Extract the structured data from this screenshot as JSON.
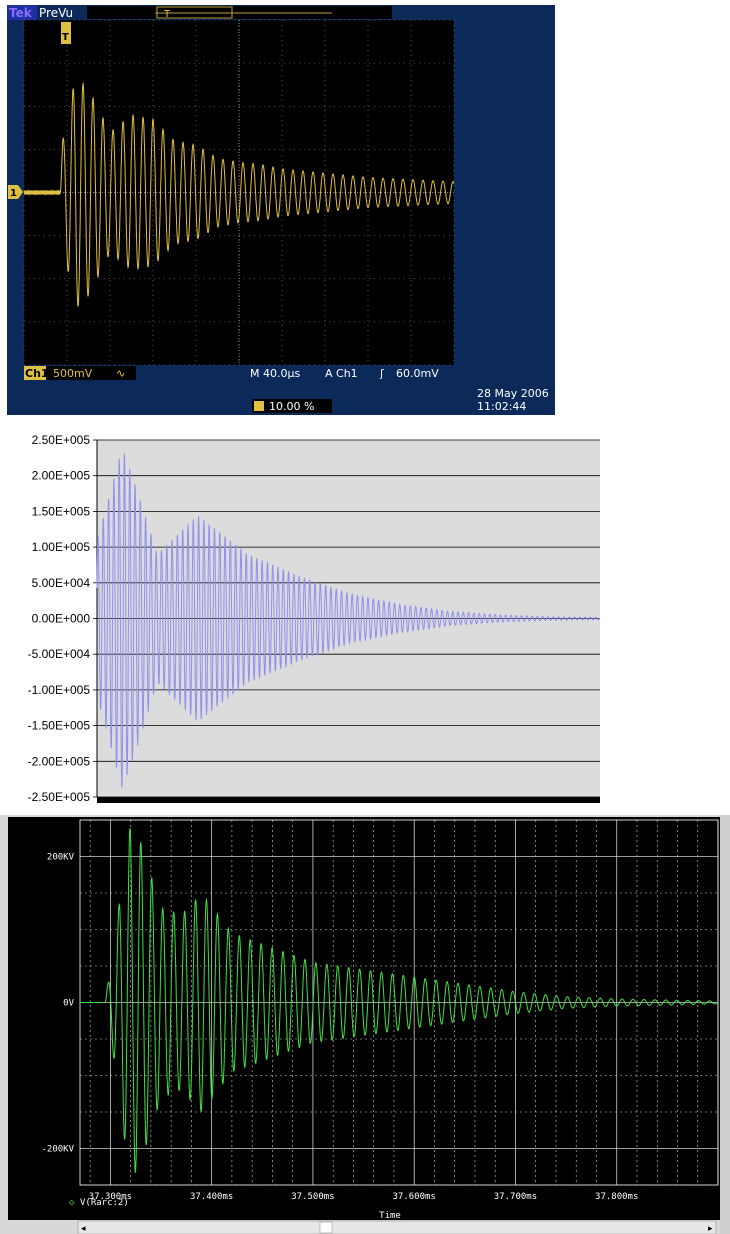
{
  "scope": {
    "brand": "Tek",
    "mode": "PreVu",
    "trigger_marker": "T",
    "channel_marker": "1",
    "channel": "Ch1",
    "volts_div": "500mV",
    "coupling_symbol": "∿",
    "timebase": "M 40.0µs",
    "trigger_source": "A  Ch1",
    "trigger_slope_symbol": "ʃ",
    "trigger_level": "60.0mV",
    "trigger_position": "10.00 %",
    "date": "28 May 2006",
    "time": "11:02:44",
    "colors": {
      "background": "#000000",
      "frame": "#0b2a5a",
      "trace": "#e0c040",
      "grid": "#9a9a9a",
      "text": "#ffffff"
    }
  },
  "chart_data": [
    {
      "type": "line",
      "title": "",
      "xlabel": "",
      "ylabel": "",
      "xlim": [
        0,
        10
      ],
      "ylim": [
        -4,
        4
      ],
      "grid": true,
      "x_units": "divisions (40.0 µs/div)",
      "y_units": "divisions (500 mV/div)",
      "series": [
        {
          "color": "#e0c040",
          "x": [
            0.0,
            0.8,
            0.9,
            1.2,
            1.5,
            2.0,
            2.5,
            3.0,
            3.5,
            4.0,
            4.5,
            5.0,
            5.5,
            6.0,
            7.0,
            8.0,
            9.0,
            10.0
          ],
          "envelope": [
            0.05,
            0.05,
            1.2,
            2.7,
            2.4,
            1.4,
            1.8,
            1.7,
            1.2,
            1.1,
            0.8,
            0.7,
            0.65,
            0.55,
            0.45,
            0.35,
            0.3,
            0.25
          ]
        }
      ]
    },
    {
      "type": "line",
      "title": "",
      "xlabel": "",
      "ylabel": "",
      "ylim": [
        -250000,
        250000
      ],
      "grid": true,
      "yticks": [
        "2.50E+005",
        "2.00E+005",
        "1.50E+005",
        "1.00E+005",
        "5.00E+004",
        "0.00E+000",
        "-5.00E+004",
        "-1.00E+005",
        "-1.50E+005",
        "-2.00E+005",
        "-2.50E+005"
      ],
      "series": [
        {
          "color": "#8f8ff0",
          "x": [
            0.0,
            0.02,
            0.05,
            0.08,
            0.12,
            0.2,
            0.3,
            0.4,
            0.5,
            0.6,
            0.7,
            0.8,
            0.9,
            1.0
          ],
          "envelope": [
            110000,
            160000,
            240000,
            180000,
            90000,
            145000,
            90000,
            60000,
            35000,
            20000,
            10000,
            5000,
            2500,
            1500
          ]
        }
      ]
    },
    {
      "type": "line",
      "title": "",
      "xlabel": "Time",
      "ylabel": "",
      "xlim": [
        37.27,
        37.9
      ],
      "ylim": [
        -250,
        250
      ],
      "y_units": "KV",
      "grid": true,
      "xticks": [
        "37.300ms",
        "37.400ms",
        "37.500ms",
        "37.600ms",
        "37.700ms",
        "37.800ms"
      ],
      "yticks": [
        "200KV",
        "0V",
        "-200KV"
      ],
      "legend": "bottom-left",
      "series": [
        {
          "name": "V(Rarc:2)",
          "color": "#40e040",
          "x": [
            37.295,
            37.3,
            37.31,
            37.32,
            37.33,
            37.35,
            37.37,
            37.39,
            37.42,
            37.45,
            37.5,
            37.55,
            37.6,
            37.65,
            37.7,
            37.75,
            37.8,
            37.9
          ],
          "envelope": [
            10,
            40,
            150,
            245,
            220,
            130,
            120,
            150,
            95,
            80,
            55,
            45,
            35,
            25,
            15,
            8,
            5,
            2
          ]
        }
      ]
    }
  ],
  "pspice": {
    "legend_marker": "◇",
    "legend_label": "V(Rarc:2)",
    "scroll_left": "◂",
    "scroll_right": "▸",
    "colors": {
      "background": "#000000",
      "trace": "#40e040",
      "grid": "#cfcfcf",
      "text": "#ffffff"
    }
  }
}
